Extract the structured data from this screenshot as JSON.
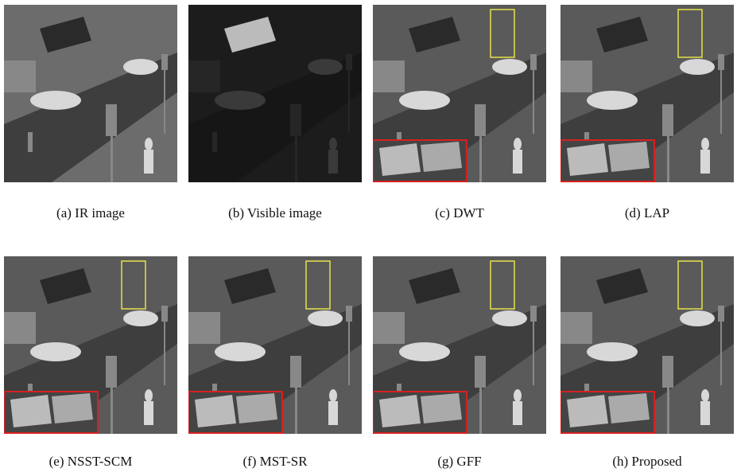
{
  "panels": [
    {
      "caption": "(a) IR image"
    },
    {
      "caption": "(b) Visible image"
    },
    {
      "caption": "(c) DWT"
    },
    {
      "caption": "(d) LAP"
    },
    {
      "caption": "(e) NSST-SCM"
    },
    {
      "caption": "(f) MST-SR"
    },
    {
      "caption": "(g) GFF"
    },
    {
      "caption": "(h) Proposed"
    }
  ]
}
